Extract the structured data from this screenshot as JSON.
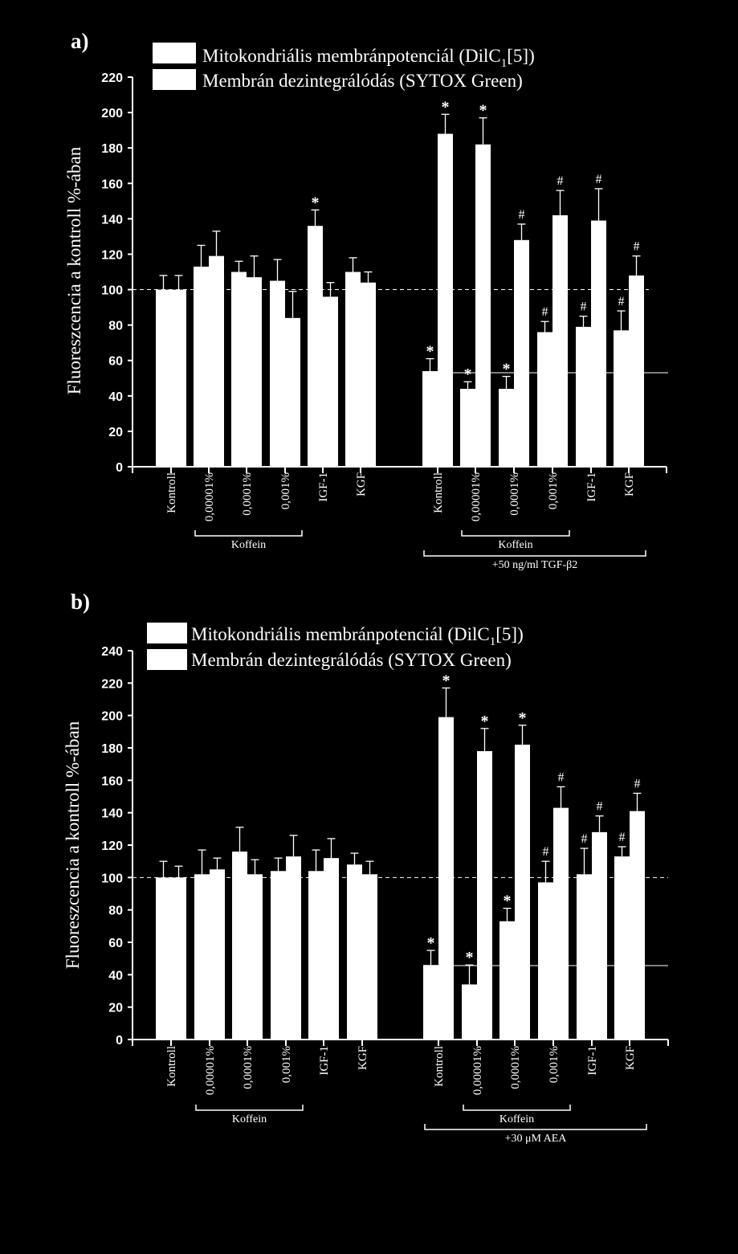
{
  "chart_data": [
    {
      "type": "bar",
      "panel_label": "a)",
      "ylabel": "Fluoreszcencia  a kontroll  %-ában",
      "ylim": [
        0,
        220
      ],
      "yticks": [
        0,
        20,
        40,
        60,
        80,
        100,
        120,
        140,
        160,
        180,
        200,
        220
      ],
      "legend": {
        "placement": "top",
        "entries": [
          {
            "label": "Mitokondriális  membránpotenciál (DilC",
            "sub": "1",
            "suffix": "[5])"
          },
          {
            "label": "Membrán  dezintegrálódás  (SYTOX  Green)",
            "sub": "",
            "suffix": ""
          }
        ]
      },
      "reference_line": 100,
      "categories": [
        "Kontroll",
        "0,00001%",
        "0,0001%",
        "0,001%",
        "IGF-1",
        "KGF",
        "Kontroll",
        "0,00001%",
        "0,0001%",
        "0,001%",
        "IGF-1",
        "KGF"
      ],
      "series": [
        {
          "values": [
            100,
            113,
            110,
            105,
            136,
            110,
            54,
            44,
            44,
            76,
            79,
            77
          ],
          "errors": [
            8,
            12,
            6,
            12,
            9,
            8,
            7,
            4,
            7,
            6,
            6,
            11
          ],
          "marks": [
            "",
            "",
            "",
            "",
            "*",
            "",
            "*",
            "*",
            "*",
            "#",
            "#",
            "#"
          ]
        },
        {
          "values": [
            100,
            119,
            107,
            84,
            96,
            104,
            188,
            182,
            128,
            142,
            139,
            108
          ],
          "errors": [
            8,
            14,
            12,
            15,
            8,
            6,
            11,
            15,
            9,
            14,
            18,
            11
          ],
          "marks": [
            "",
            "",
            "",
            "",
            "",
            "",
            "*",
            "*",
            "#",
            "#",
            "#",
            "#"
          ]
        }
      ],
      "groups": [
        {
          "label": "Koffein",
          "from": 1,
          "to": 3,
          "level": 1
        },
        {
          "label": "Koffein",
          "from": 7,
          "to": 9,
          "level": 1
        },
        {
          "label": "+50 ng/ml TGF-β2",
          "from": 6,
          "to": 11,
          "level": 2
        }
      ]
    },
    {
      "type": "bar",
      "panel_label": "b)",
      "ylabel": "Fluoreszcencia  a kontroll  %-ában",
      "ylim": [
        0,
        240
      ],
      "yticks": [
        0,
        20,
        40,
        60,
        80,
        100,
        120,
        140,
        160,
        180,
        200,
        220,
        240
      ],
      "legend": {
        "placement": "top",
        "entries": [
          {
            "label": "Mitokondriális  membránpotenciál (DilC",
            "sub": "1",
            "suffix": "[5])"
          },
          {
            "label": "Membrán  dezintegrálódás  (SYTOX  Green)",
            "sub": "",
            "suffix": ""
          }
        ]
      },
      "reference_line": 100,
      "categories": [
        "Kontroll",
        "0,00001%",
        "0,0001%",
        "0,001%",
        "IGF-1",
        "KGF",
        "Kontroll",
        "0,00001%",
        "0,0001%",
        "0,001%",
        "IGF-1",
        "KGF"
      ],
      "series": [
        {
          "values": [
            100,
            102,
            116,
            104,
            104,
            108,
            46,
            34,
            73,
            97,
            102,
            113
          ],
          "errors": [
            10,
            15,
            15,
            8,
            13,
            7,
            9,
            12,
            8,
            13,
            16,
            6
          ],
          "marks": [
            "",
            "",
            "",
            "",
            "",
            "",
            "*",
            "*",
            "*",
            "#",
            "#",
            "#"
          ]
        },
        {
          "values": [
            100,
            105,
            102,
            113,
            112,
            102,
            199,
            178,
            182,
            143,
            128,
            141
          ],
          "errors": [
            7,
            7,
            9,
            13,
            12,
            8,
            18,
            14,
            12,
            13,
            10,
            11
          ],
          "marks": [
            "",
            "",
            "",
            "",
            "",
            "",
            "*",
            "*",
            "*",
            "#",
            "#",
            "#"
          ]
        }
      ],
      "groups": [
        {
          "label": "Koffein",
          "from": 1,
          "to": 3,
          "level": 1
        },
        {
          "label": "Koffein",
          "from": 7,
          "to": 9,
          "level": 1
        },
        {
          "label": "+30 μM AEA",
          "from": 6,
          "to": 11,
          "level": 2
        }
      ]
    }
  ]
}
